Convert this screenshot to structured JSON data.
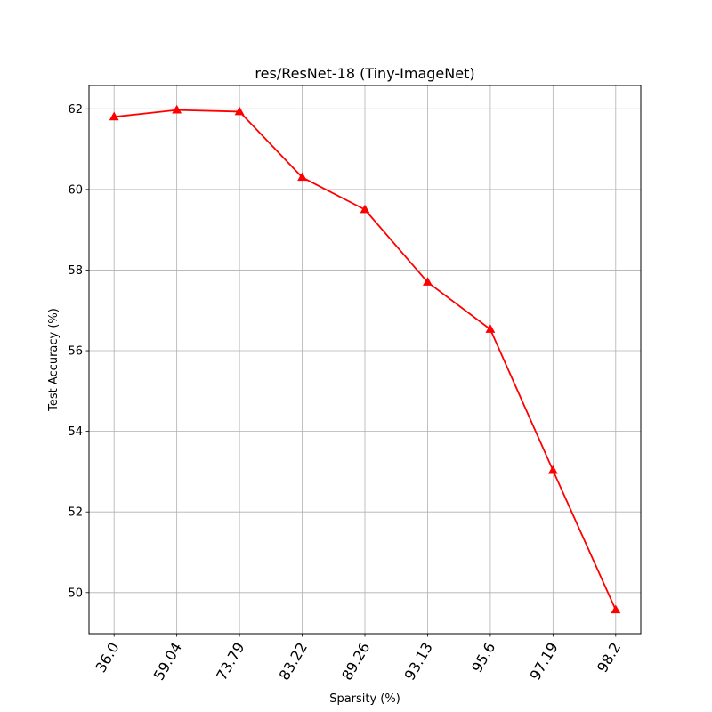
{
  "chart_data": {
    "type": "line",
    "title": "res/ResNet-18 (Tiny-ImageNet)",
    "xlabel": "Sparsity (%)",
    "ylabel": "Test Accuracy (%)",
    "categories": [
      "36.0",
      "59.04",
      "73.79",
      "83.22",
      "89.26",
      "93.13",
      "95.6",
      "97.19",
      "98.2"
    ],
    "series": [
      {
        "values": [
          61.8,
          61.97,
          61.93,
          60.3,
          59.5,
          57.7,
          56.53,
          53.03,
          49.57
        ],
        "color": "#ff0000",
        "marker": "triangle-up"
      }
    ],
    "ylim": [
      48.98,
      62.58
    ],
    "yticks": [
      50,
      52,
      54,
      56,
      58,
      60,
      62
    ],
    "grid": true,
    "xtick_rotation": 60
  }
}
